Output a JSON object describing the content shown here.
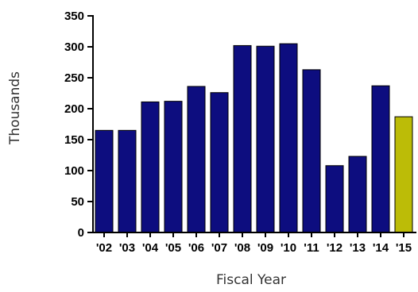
{
  "chart_data": {
    "type": "bar",
    "title": "",
    "xlabel": "Fiscal Year",
    "ylabel": "Thousands",
    "categories": [
      "'02",
      "'03",
      "'04",
      "'05",
      "'06",
      "'07",
      "'08",
      "'09",
      "'10",
      "'11",
      "'12",
      "'13",
      "'14",
      "'15"
    ],
    "values": [
      165,
      165,
      211,
      212,
      236,
      226,
      302,
      301,
      305,
      263,
      108,
      123,
      237,
      187
    ],
    "ylim": [
      0,
      350
    ],
    "yticks": [
      0,
      50,
      100,
      150,
      200,
      250,
      300,
      350
    ],
    "grid": false,
    "legend": "none",
    "colors": {
      "default_bar": "#0d0d7f",
      "highlight_bar": "#bcbc07",
      "highlight_categories": [
        "'15"
      ],
      "axis": "#000000"
    }
  }
}
